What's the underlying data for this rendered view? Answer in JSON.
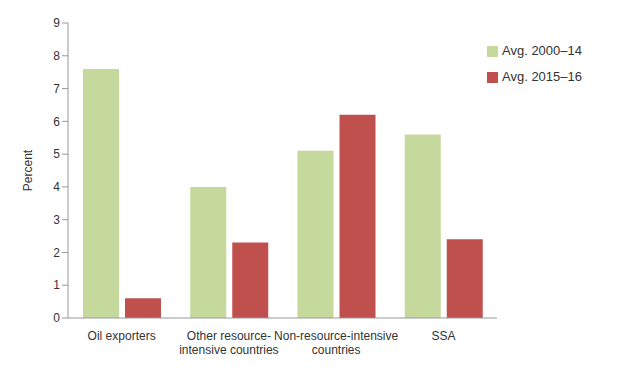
{
  "chart_data": {
    "type": "bar",
    "y_label": "Percent",
    "categories": [
      "Oil exporters",
      "Other resource-\nintensive countries",
      "Non-resource-intensive\ncountries",
      "SSA"
    ],
    "series": [
      {
        "name": "Avg. 2000–14",
        "color": "#c4d99b",
        "values": [
          7.6,
          4.0,
          5.1,
          5.6
        ]
      },
      {
        "name": "Avg. 2015–16",
        "color": "#c0504d",
        "values": [
          0.6,
          2.3,
          6.2,
          2.4
        ]
      }
    ],
    "ylim": [
      0,
      9
    ],
    "yticks": [
      0,
      1,
      2,
      3,
      4,
      5,
      6,
      7,
      8,
      9
    ],
    "grid": false,
    "legend": "upper right"
  }
}
